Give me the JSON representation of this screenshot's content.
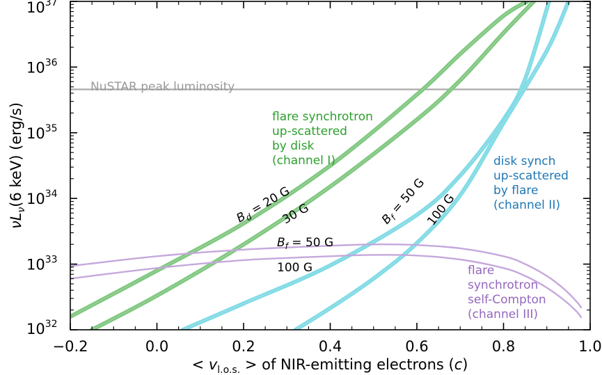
{
  "chart_data": {
    "type": "line",
    "xlabel_parts": {
      "lt": "<",
      "nu": "v",
      "sub": "l.o.s.",
      "gt": ">",
      "rest": " of NIR-emitting electrons (",
      "c": "c",
      "close": ")"
    },
    "ylabel_parts": {
      "nu": "ν",
      "L": "L",
      "sub": "ν",
      "rest": "(6 keV)  (erg/s)"
    },
    "xlim": [
      -0.2,
      1.0
    ],
    "ylim_log10": [
      32,
      37
    ],
    "yscale": "log",
    "x_ticks": [
      -0.2,
      0.0,
      0.2,
      0.4,
      0.6,
      0.8,
      1.0
    ],
    "x_tick_labels": [
      "−0.2",
      "0.0",
      "0.2",
      "0.4",
      "0.6",
      "0.8",
      "1.0"
    ],
    "y_ticks_exp": [
      32,
      33,
      34,
      35,
      36,
      37
    ],
    "y_tick_base": "10",
    "y_tick_exponents": [
      "32",
      "33",
      "34",
      "35",
      "36",
      "37"
    ],
    "hline": {
      "log10_y": 35.66,
      "label": "NuSTAR peak luminosity",
      "color": "#aaaaaa"
    },
    "series": [
      {
        "name": "channel I, B_d = 20 G",
        "color": "#7fc97f",
        "band": true,
        "x": [
          -0.2,
          0.0,
          0.2,
          0.4,
          0.6,
          0.7,
          0.8,
          0.855
        ],
        "log10_y": [
          32.2,
          32.9,
          33.62,
          34.5,
          35.58,
          36.2,
          36.78,
          37.0
        ]
      },
      {
        "name": "channel I, B_d = 30 G",
        "color": "#7fc97f",
        "band": true,
        "x": [
          -0.15,
          0.0,
          0.2,
          0.4,
          0.6,
          0.7,
          0.8,
          0.87
        ],
        "log10_y": [
          32.0,
          32.52,
          33.3,
          34.18,
          35.2,
          35.8,
          36.52,
          37.0
        ]
      },
      {
        "name": "channel II, B_f = 50 G",
        "color": "#7fdde8",
        "band": true,
        "x": [
          0.06,
          0.2,
          0.4,
          0.6,
          0.7,
          0.8,
          0.85,
          0.905
        ],
        "log10_y": [
          32.0,
          32.4,
          32.98,
          33.75,
          34.35,
          35.2,
          35.82,
          37.0
        ]
      },
      {
        "name": "channel II, B_f = 100 G",
        "color": "#7fdde8",
        "band": true,
        "x": [
          0.32,
          0.4,
          0.5,
          0.6,
          0.7,
          0.8,
          0.9,
          0.95
        ],
        "log10_y": [
          32.0,
          32.33,
          32.78,
          33.32,
          34.05,
          35.15,
          36.25,
          37.0
        ]
      },
      {
        "name": "channel III, B_f = 50 G",
        "color": "#c5a8dc",
        "band": false,
        "x": [
          -0.2,
          0.0,
          0.2,
          0.4,
          0.5,
          0.6,
          0.7,
          0.8,
          0.85,
          0.9,
          0.94,
          0.97,
          0.98
        ],
        "log10_y": [
          32.97,
          33.12,
          33.22,
          33.28,
          33.3,
          33.29,
          33.24,
          33.12,
          33.0,
          32.82,
          32.62,
          32.42,
          32.33
        ]
      },
      {
        "name": "channel III, B_f = 100 G",
        "color": "#c5a8dc",
        "band": false,
        "x": [
          -0.2,
          0.0,
          0.2,
          0.4,
          0.5,
          0.6,
          0.7,
          0.8,
          0.85,
          0.9,
          0.94,
          0.97,
          0.98
        ],
        "log10_y": [
          32.78,
          32.94,
          33.06,
          33.12,
          33.14,
          33.13,
          33.07,
          32.94,
          32.82,
          32.64,
          32.45,
          32.27,
          32.18
        ]
      }
    ],
    "annotations": {
      "nustar": "NuSTAR peak luminosity",
      "channel1": [
        "flare synchrotron",
        "up-scattered",
        "by disk",
        "(channel I)"
      ],
      "channel2": [
        "disk synch",
        "up-scattered",
        "by flare",
        "(channel II)"
      ],
      "channel3": [
        "flare",
        "synchrotron",
        "self-Compton",
        "(channel III)"
      ],
      "bd20": {
        "sym": "B",
        "sub": "d",
        "eq": " = 20 G"
      },
      "bd30": "30 G",
      "bf50_c2": {
        "sym": "B",
        "sub": "f",
        "eq": " = 50 G"
      },
      "bf100_c2": "100 G",
      "bf50_c3": {
        "sym": "B",
        "sub": "f",
        "eq": " = 50 G"
      },
      "bf100_c3": "100 G"
    },
    "colors": {
      "channel1_text": "#2ca02c",
      "channel2_text": "#1f77b4",
      "channel3_text": "#9467bd",
      "nustar_text": "#999999"
    }
  }
}
